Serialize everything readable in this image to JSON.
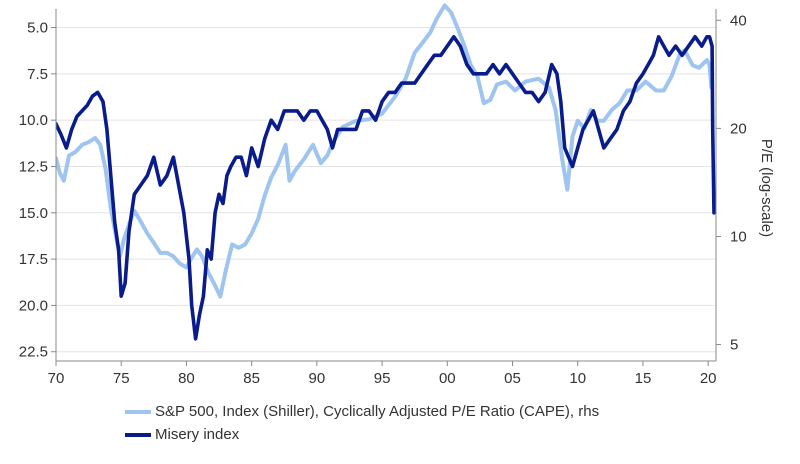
{
  "chart_data": {
    "type": "line",
    "x_axis": {
      "range": [
        1970,
        2020.6
      ],
      "ticks": [
        1970,
        1975,
        1980,
        1985,
        1990,
        1995,
        2000,
        2005,
        2010,
        2015,
        2020
      ],
      "tick_labels": [
        "70",
        "75",
        "80",
        "85",
        "90",
        "95",
        "00",
        "05",
        "10",
        "15",
        "20"
      ]
    },
    "y_left": {
      "inverted": true,
      "range": [
        4.0,
        23.0
      ],
      "ticks": [
        5.0,
        7.5,
        10.0,
        12.5,
        15.0,
        17.5,
        20.0,
        22.5
      ],
      "tick_labels": [
        "5.0",
        "7.5",
        "10.0",
        "12.5",
        "15.0",
        "17.5",
        "20.0",
        "22.5"
      ]
    },
    "y_right": {
      "scale": "log",
      "label": "P/E (log-scale)",
      "range": [
        4.5,
        43
      ],
      "ticks": [
        5,
        10,
        20,
        40
      ],
      "tick_labels": [
        "5",
        "10",
        "20",
        "40"
      ]
    },
    "grid": true,
    "legend_position": "bottom",
    "series": [
      {
        "name": "S&P 500, Index (Shiller), Cyclically Adjusted P/E Ratio (CAPE), rhs",
        "axis": "right",
        "color": "#9ec4ef",
        "x": [
          1970.0,
          1970.3,
          1970.6,
          1971.0,
          1971.5,
          1972.0,
          1972.5,
          1973.0,
          1973.4,
          1973.8,
          1974.2,
          1974.6,
          1974.9,
          1975.2,
          1975.6,
          1976.0,
          1976.5,
          1977.0,
          1977.5,
          1978.0,
          1978.5,
          1979.0,
          1979.5,
          1980.0,
          1980.3,
          1980.8,
          1981.2,
          1981.7,
          1982.2,
          1982.6,
          1983.0,
          1983.5,
          1984.0,
          1984.5,
          1985.0,
          1985.5,
          1986.0,
          1986.5,
          1987.0,
          1987.6,
          1987.9,
          1988.3,
          1989.0,
          1989.7,
          1990.3,
          1990.8,
          1991.3,
          1992.0,
          1993.0,
          1994.0,
          1995.0,
          1996.0,
          1996.8,
          1997.5,
          1998.2,
          1998.7,
          1999.2,
          1999.8,
          2000.3,
          2000.8,
          2001.3,
          2001.8,
          2002.3,
          2002.8,
          2003.3,
          2003.8,
          2004.5,
          2005.2,
          2006.0,
          2007.0,
          2007.8,
          2008.3,
          2008.8,
          2009.2,
          2009.6,
          2010.0,
          2010.5,
          2011.0,
          2011.5,
          2012.0,
          2012.6,
          2013.2,
          2013.8,
          2014.5,
          2015.2,
          2016.0,
          2016.6,
          2017.2,
          2017.8,
          2018.2,
          2018.8,
          2019.3,
          2019.9,
          2020.1,
          2020.25
        ],
        "y": [
          16.5,
          15.0,
          14.3,
          16.8,
          17.2,
          18.0,
          18.3,
          18.8,
          18.0,
          15.4,
          12.0,
          10.0,
          8.8,
          9.8,
          10.8,
          11.8,
          11.0,
          10.2,
          9.6,
          9.0,
          9.0,
          8.8,
          8.4,
          8.2,
          8.6,
          9.2,
          8.8,
          7.9,
          7.3,
          6.8,
          8.0,
          9.5,
          9.3,
          9.5,
          10.2,
          11.2,
          13.0,
          14.6,
          15.8,
          18.0,
          14.3,
          15.2,
          16.4,
          18.0,
          16.0,
          16.8,
          18.5,
          20.2,
          21.0,
          21.2,
          22.0,
          24.5,
          27.5,
          32.5,
          35.0,
          37.0,
          40.5,
          44.0,
          42.0,
          38.0,
          34.0,
          30.0,
          28.0,
          23.5,
          24.0,
          26.5,
          27.0,
          25.5,
          27.0,
          27.5,
          26.0,
          22.5,
          16.5,
          13.5,
          19.0,
          21.0,
          20.0,
          22.5,
          21.0,
          21.0,
          22.5,
          23.5,
          25.5,
          25.5,
          27.0,
          25.5,
          25.5,
          28.0,
          32.0,
          33.0,
          30.0,
          29.5,
          31.0,
          30.0,
          26.0
        ]
      },
      {
        "name": "Misery index",
        "axis": "left",
        "color": "#0a1c8c",
        "x": [
          1970.0,
          1970.4,
          1970.8,
          1971.2,
          1971.6,
          1972.0,
          1972.4,
          1972.8,
          1973.2,
          1973.6,
          1973.9,
          1974.2,
          1974.5,
          1974.8,
          1975.0,
          1975.3,
          1975.6,
          1976.0,
          1976.5,
          1977.0,
          1977.5,
          1978.0,
          1978.5,
          1979.0,
          1979.4,
          1979.8,
          1980.2,
          1980.4,
          1980.7,
          1981.0,
          1981.3,
          1981.6,
          1981.9,
          1982.2,
          1982.5,
          1982.8,
          1983.1,
          1983.4,
          1983.8,
          1984.2,
          1984.6,
          1985.0,
          1985.5,
          1986.0,
          1986.5,
          1987.0,
          1987.5,
          1988.0,
          1988.5,
          1989.0,
          1989.5,
          1990.0,
          1990.4,
          1990.8,
          1991.2,
          1991.6,
          1992.0,
          1992.5,
          1993.0,
          1993.5,
          1994.0,
          1994.5,
          1995.0,
          1995.5,
          1996.0,
          1996.5,
          1997.0,
          1997.5,
          1998.0,
          1998.5,
          1999.0,
          1999.5,
          2000.0,
          2000.5,
          2001.0,
          2001.5,
          2002.0,
          2002.5,
          2003.0,
          2003.5,
          2004.0,
          2004.5,
          2005.0,
          2005.5,
          2006.0,
          2006.5,
          2007.0,
          2007.5,
          2008.0,
          2008.4,
          2008.7,
          2009.0,
          2009.3,
          2009.6,
          2010.0,
          2010.4,
          2010.8,
          2011.2,
          2011.6,
          2012.0,
          2012.5,
          2013.0,
          2013.5,
          2014.0,
          2014.5,
          2015.0,
          2015.4,
          2015.8,
          2016.2,
          2016.6,
          2017.0,
          2017.5,
          2018.0,
          2018.5,
          2019.0,
          2019.5,
          2019.9,
          2020.1,
          2020.3,
          2020.35,
          2020.45
        ],
        "y": [
          10.2,
          10.8,
          11.5,
          10.5,
          9.8,
          9.5,
          9.2,
          8.7,
          8.5,
          9.0,
          10.5,
          13.0,
          15.5,
          17.0,
          19.5,
          18.8,
          16.0,
          14.0,
          13.5,
          13.0,
          12.0,
          13.5,
          13.0,
          12.0,
          13.5,
          15.0,
          17.5,
          20.0,
          21.8,
          20.5,
          19.5,
          17.0,
          17.5,
          15.0,
          14.0,
          14.5,
          13.0,
          12.5,
          12.0,
          12.0,
          13.0,
          11.5,
          12.5,
          11.0,
          10.0,
          10.5,
          9.5,
          9.5,
          9.5,
          10.0,
          9.5,
          9.5,
          10.0,
          10.5,
          11.5,
          10.5,
          10.5,
          10.5,
          10.5,
          9.5,
          9.5,
          10.0,
          9.0,
          8.5,
          8.5,
          8.0,
          8.0,
          8.0,
          7.5,
          7.0,
          6.5,
          6.5,
          6.0,
          5.5,
          6.0,
          7.0,
          7.5,
          7.5,
          7.5,
          7.0,
          7.5,
          7.0,
          7.5,
          8.0,
          8.5,
          8.5,
          9.0,
          8.5,
          7.0,
          7.5,
          9.0,
          11.5,
          12.0,
          12.5,
          11.5,
          10.5,
          10.0,
          9.5,
          10.5,
          11.5,
          11.0,
          10.5,
          9.5,
          9.0,
          8.0,
          7.5,
          7.0,
          6.5,
          5.5,
          6.0,
          6.5,
          6.0,
          6.5,
          6.0,
          5.5,
          6.0,
          5.5,
          5.5,
          6.0,
          10.5,
          15.0
        ]
      }
    ]
  }
}
